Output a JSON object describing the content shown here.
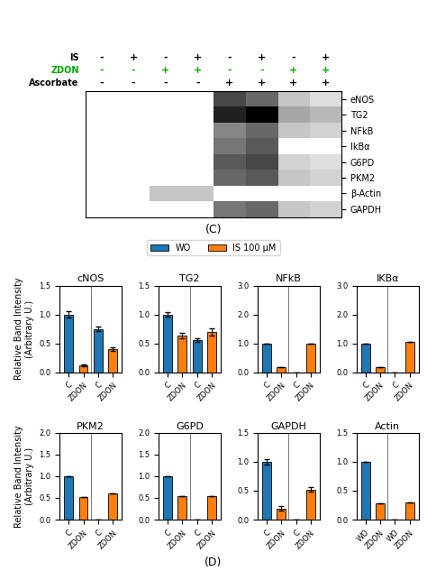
{
  "chart_data": [
    {
      "type": "heatmap",
      "title": "(C)",
      "rows": [
        "eNOS",
        "TG2",
        "NFkB",
        "IkBα",
        "G6PD",
        "PKM2",
        "β-Actin",
        "GAPDH"
      ],
      "series": [
        {
          "name": "IS",
          "values": [
            "-",
            "+",
            "-",
            "+",
            "-",
            "+",
            "-",
            "+"
          ]
        },
        {
          "name": "ZDON",
          "color": "#00aa00",
          "values": [
            "-",
            "-",
            "+",
            "+",
            "-",
            "-",
            "+",
            "+"
          ]
        },
        {
          "name": "Ascorbate",
          "values": [
            "-",
            "-",
            "-",
            "-",
            "+",
            "+",
            "+",
            "+"
          ]
        }
      ],
      "cells": [
        [
          0,
          0,
          0,
          0,
          0.7,
          0.6,
          0.3,
          0.2
        ],
        [
          0,
          0,
          0,
          0,
          0.8,
          0.9,
          0.4,
          0.35
        ],
        [
          0,
          0,
          0,
          0,
          0.5,
          0.6,
          0.3,
          0.25
        ],
        [
          0,
          0,
          0,
          0,
          0.55,
          0.65,
          0,
          0
        ],
        [
          0,
          0,
          0,
          0,
          0.65,
          0.7,
          0.25,
          0.2
        ],
        [
          0,
          0,
          0,
          0,
          0.6,
          0.65,
          0.3,
          0.25
        ],
        [
          0,
          0,
          0.3,
          0.3,
          0,
          0,
          0,
          0
        ],
        [
          0,
          0,
          0,
          0,
          0.55,
          0.6,
          0.3,
          0.25
        ]
      ]
    },
    {
      "type": "bar",
      "title": "cNOS",
      "legend": "upper center",
      "annotations": [
        {
          "text": "(D)"
        }
      ],
      "y_label": "Relative Band Intensity\n(Arbitrary U.)",
      "categories": [
        "C",
        "ZDON",
        "C",
        "ZDON"
      ],
      "ylim": [
        0,
        1.5
      ],
      "yticks": [
        {
          "value": 0.0,
          "label": "0.0"
        },
        {
          "value": 0.5,
          "label": "0.5"
        },
        {
          "value": 1.0,
          "label": "1.0"
        },
        {
          "value": 1.5,
          "label": "1.5"
        }
      ],
      "series": [
        {
          "name": "WO",
          "values": [
            1.0,
            null,
            0.75,
            null
          ],
          "errors": [
            0.05,
            null,
            0.04,
            null
          ]
        },
        {
          "name": "IS 100 μM",
          "values": [
            null,
            0.12,
            null,
            0.4
          ],
          "errors": [
            null,
            0.02,
            null,
            0.03
          ]
        }
      ]
    },
    {
      "type": "bar",
      "title": "TG2",
      "categories": [
        "C",
        "ZDON",
        "C",
        "ZDON"
      ],
      "ylim": [
        0,
        1.5
      ],
      "yticks": [
        {
          "value": 0.0,
          "label": "0.0"
        },
        {
          "value": 0.5,
          "label": "0.5"
        },
        {
          "value": 1.0,
          "label": "1.0"
        },
        {
          "value": 1.5,
          "label": "1.5"
        }
      ],
      "series": [
        {
          "name": "WO",
          "values": [
            1.0,
            null,
            0.55,
            null
          ],
          "errors": [
            0.04,
            null,
            0.03,
            null
          ]
        },
        {
          "name": "IS 100 μM",
          "values": [
            null,
            0.63,
            null,
            0.7
          ],
          "errors": [
            null,
            0.05,
            null,
            0.06
          ]
        }
      ]
    },
    {
      "type": "bar",
      "title": "NFkB",
      "categories": [
        "C",
        "ZDON",
        "C",
        "ZDON"
      ],
      "ylim": [
        0,
        3.0
      ],
      "yticks": [
        {
          "value": 0.0,
          "label": "0.0"
        },
        {
          "value": 1.0,
          "label": "1.0"
        },
        {
          "value": 2.0,
          "label": "2.0"
        },
        {
          "value": 3.0,
          "label": "3.0"
        }
      ],
      "series": [
        {
          "name": "WO",
          "values": [
            1.0,
            null,
            0.0,
            null
          ],
          "errors": [
            0.0,
            null,
            0.0,
            null
          ]
        },
        {
          "name": "IS 100 μM",
          "values": [
            null,
            0.18,
            null,
            1.0
          ],
          "errors": [
            null,
            0.0,
            null,
            0.0
          ]
        }
      ]
    },
    {
      "type": "bar",
      "title": "IKBα",
      "categories": [
        "C",
        "ZDON",
        "C",
        "ZDON"
      ],
      "ylim": [
        0,
        3.0
      ],
      "yticks": [
        {
          "value": 0.0,
          "label": "0.0"
        },
        {
          "value": 1.0,
          "label": "1.0"
        },
        {
          "value": 2.0,
          "label": "2.0"
        },
        {
          "value": 3.0,
          "label": "3.0"
        }
      ],
      "series": [
        {
          "name": "WO",
          "values": [
            1.0,
            null,
            0.0,
            null
          ],
          "errors": [
            0.0,
            null,
            0.0,
            null
          ]
        },
        {
          "name": "IS 100 μM",
          "values": [
            null,
            0.18,
            null,
            1.05
          ],
          "errors": [
            null,
            0.0,
            null,
            0.0
          ]
        }
      ]
    },
    {
      "type": "bar",
      "title": "PKM2",
      "y_label": "Relative Band Intensity\n(Arbitrary U.)",
      "categories": [
        "C",
        "ZDON",
        "C",
        "ZDON"
      ],
      "ylim": [
        0,
        2.0
      ],
      "yticks": [
        {
          "value": 0.0,
          "label": "0.0"
        },
        {
          "value": 0.5,
          "label": "0.5"
        },
        {
          "value": 1.0,
          "label": "1.0"
        },
        {
          "value": 1.5,
          "label": "1.5"
        },
        {
          "value": 2.0,
          "label": "2.0"
        }
      ],
      "series": [
        {
          "name": "WO",
          "values": [
            1.0,
            null,
            0.0,
            null
          ],
          "errors": [
            0.0,
            null,
            0.0,
            null
          ]
        },
        {
          "name": "IS 100 μM",
          "values": [
            null,
            0.52,
            null,
            0.6
          ],
          "errors": [
            null,
            0.0,
            null,
            0.0
          ]
        }
      ]
    },
    {
      "type": "bar",
      "title": "G6PD",
      "categories": [
        "C",
        "ZDON",
        "C",
        "ZDON"
      ],
      "ylim": [
        0,
        2.0
      ],
      "yticks": [
        {
          "value": 0.0,
          "label": "0.0"
        },
        {
          "value": 0.5,
          "label": "0.5"
        },
        {
          "value": 1.0,
          "label": "1.0"
        },
        {
          "value": 1.5,
          "label": "1.5"
        },
        {
          "value": 2.0,
          "label": "2.0"
        }
      ],
      "series": [
        {
          "name": "WO",
          "values": [
            1.0,
            null,
            0.0,
            null
          ],
          "errors": [
            0.0,
            null,
            0.0,
            null
          ]
        },
        {
          "name": "IS 100 μM",
          "values": [
            null,
            0.55,
            null,
            0.55
          ],
          "errors": [
            null,
            0.0,
            null,
            0.0
          ]
        }
      ]
    },
    {
      "type": "bar",
      "title": "GAPDH",
      "categories": [
        "C",
        "ZDON",
        "C",
        "ZDON"
      ],
      "ylim": [
        0,
        1.5
      ],
      "yticks": [
        {
          "value": 0.0,
          "label": "0.0"
        },
        {
          "value": 0.5,
          "label": "0.5"
        },
        {
          "value": 1.0,
          "label": "1.0"
        },
        {
          "value": 1.5,
          "label": "1.5"
        }
      ],
      "series": [
        {
          "name": "WO",
          "values": [
            1.0,
            null,
            0.0,
            null
          ],
          "errors": [
            0.04,
            null,
            0.0,
            null
          ]
        },
        {
          "name": "IS 100 μM",
          "values": [
            null,
            0.19,
            null,
            0.52
          ],
          "errors": [
            null,
            0.04,
            null,
            0.04
          ]
        }
      ]
    },
    {
      "type": "bar",
      "title": "Actin",
      "categories": [
        "WO",
        "ZDON",
        "WO",
        "ZDON"
      ],
      "ylim": [
        0,
        1.5
      ],
      "yticks": [
        {
          "value": 0.0,
          "label": "0.0"
        },
        {
          "value": 0.5,
          "label": "0.5"
        },
        {
          "value": 1.0,
          "label": "1.0"
        },
        {
          "value": 1.5,
          "label": "1.5"
        }
      ],
      "series": [
        {
          "name": "WO",
          "values": [
            1.0,
            null,
            0.0,
            null
          ],
          "errors": [
            0.0,
            null,
            0.0,
            null
          ]
        },
        {
          "name": "IS 100 μM",
          "values": [
            null,
            0.28,
            null,
            0.3
          ],
          "errors": [
            null,
            0.0,
            null,
            0.0
          ]
        }
      ]
    }
  ]
}
